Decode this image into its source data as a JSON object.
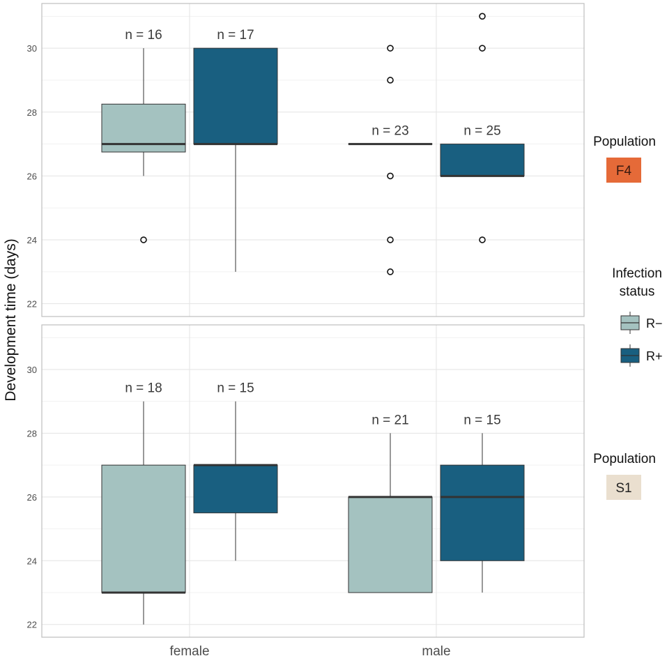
{
  "chart_data": {
    "type": "boxplot",
    "ylabel": "Development time (days)",
    "categories": [
      "female",
      "male"
    ],
    "legend": {
      "title_line1": "Infection",
      "title_line2": "status",
      "entries": [
        {
          "label": "R−",
          "color": "#a4c2c0"
        },
        {
          "label": "R+",
          "color": "#195f80"
        }
      ]
    },
    "yticks": [
      22,
      24,
      26,
      28,
      30
    ],
    "panels": [
      {
        "strip_title": "Population",
        "strip_label": "F4",
        "strip_color": "#e56a38",
        "strip_text_color": "#3a1a10",
        "ylim": [
          21.6,
          31.4
        ],
        "groups": [
          {
            "category": "female",
            "status": "R−",
            "n_label": "n = 16",
            "min": 26,
            "q1": 26.75,
            "median": 27,
            "q3": 28.25,
            "max": 30,
            "outliers": [
              24
            ]
          },
          {
            "category": "female",
            "status": "R+",
            "n_label": "n = 17",
            "min": 23,
            "q1": 27,
            "median": 27,
            "q3": 30,
            "max": 30,
            "outliers": []
          },
          {
            "category": "male",
            "status": "R−",
            "n_label": "n = 23",
            "min": 27,
            "q1": 27,
            "median": 27,
            "q3": 27,
            "max": 27,
            "outliers": [
              30,
              29,
              26,
              24,
              23
            ]
          },
          {
            "category": "male",
            "status": "R+",
            "n_label": "n = 25",
            "min": 26,
            "q1": 26,
            "median": 26,
            "q3": 27,
            "max": 27,
            "outliers": [
              31,
              30,
              24
            ]
          }
        ]
      },
      {
        "strip_title": "Population",
        "strip_label": "S1",
        "strip_color": "#eadfcf",
        "strip_text_color": "#222222",
        "ylim": [
          21.6,
          31.4
        ],
        "groups": [
          {
            "category": "female",
            "status": "R−",
            "n_label": "n = 18",
            "min": 22,
            "q1": 23,
            "median": 23,
            "q3": 27,
            "max": 29,
            "outliers": []
          },
          {
            "category": "female",
            "status": "R+",
            "n_label": "n = 15",
            "min": 24,
            "q1": 25.5,
            "median": 27,
            "q3": 27,
            "max": 29,
            "outliers": []
          },
          {
            "category": "male",
            "status": "R−",
            "n_label": "n = 21",
            "min": 23,
            "q1": 23,
            "median": 26,
            "q3": 26,
            "max": 28,
            "outliers": []
          },
          {
            "category": "male",
            "status": "R+",
            "n_label": "n = 15",
            "min": 23,
            "q1": 24,
            "median": 26,
            "q3": 27,
            "max": 28,
            "outliers": []
          }
        ]
      }
    ]
  }
}
